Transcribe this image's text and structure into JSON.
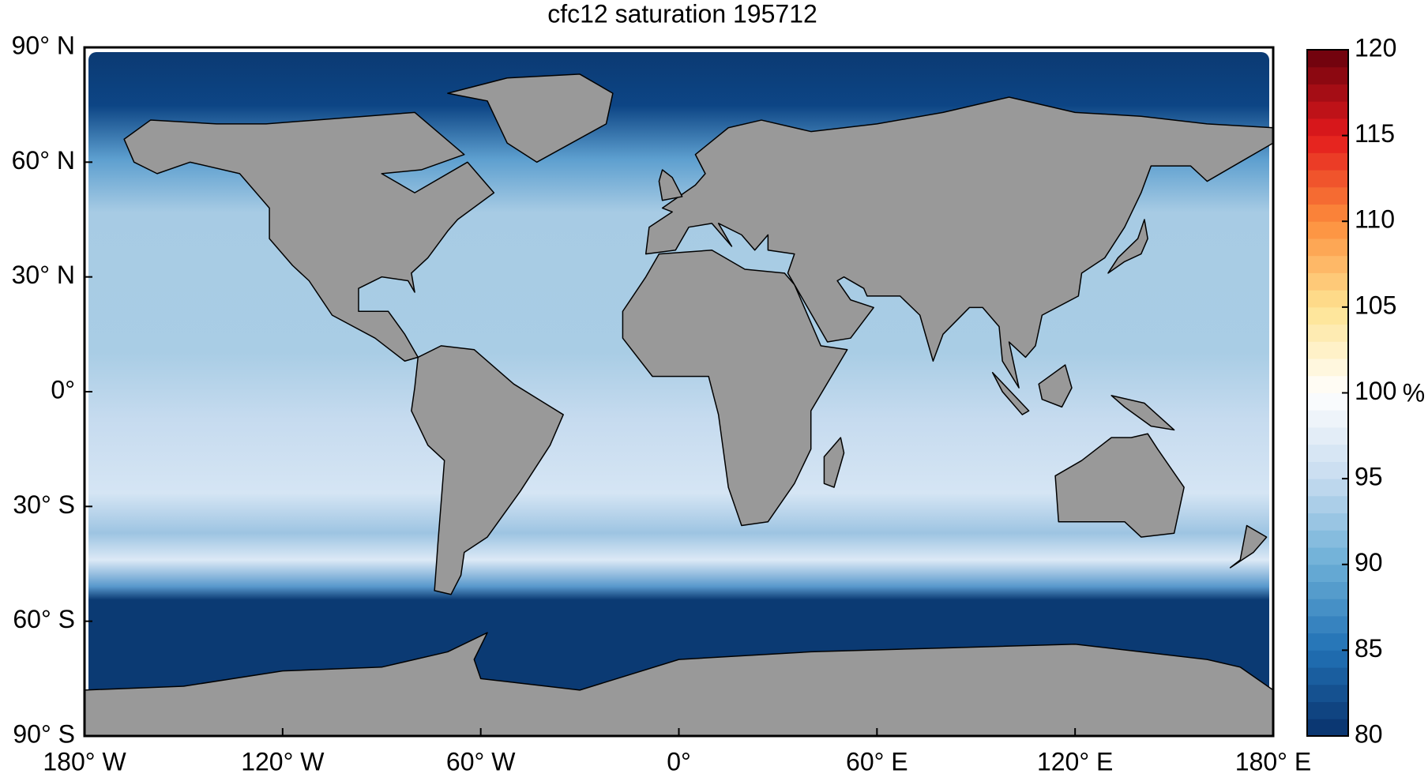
{
  "chart_data": {
    "type": "map",
    "title": "cfc12 saturation 195712",
    "xlim": [
      -180,
      180
    ],
    "xticks": [
      {
        "value": -180,
        "label": "180° W"
      },
      {
        "value": -120,
        "label": "120° W"
      },
      {
        "value": -60,
        "label": "60° W"
      },
      {
        "value": 0,
        "label": "0°"
      },
      {
        "value": 60,
        "label": "60° E"
      },
      {
        "value": 120,
        "label": "120° E"
      },
      {
        "value": 180,
        "label": "180° E"
      }
    ],
    "ylim": [
      -90,
      90
    ],
    "yticks": [
      {
        "value": 90,
        "label": "90° N"
      },
      {
        "value": 60,
        "label": "60° N"
      },
      {
        "value": 30,
        "label": "30° N"
      },
      {
        "value": 0,
        "label": "0°"
      },
      {
        "value": -30,
        "label": "30° S"
      },
      {
        "value": -60,
        "label": "60° S"
      },
      {
        "value": -90,
        "label": "90° S"
      }
    ],
    "colorbar": {
      "clim": [
        80,
        120
      ],
      "cticks": [
        80,
        85,
        90,
        95,
        100,
        105,
        110,
        115,
        120
      ],
      "label": "%",
      "colormap": [
        "#08306b",
        "#2171b5",
        "#6baed6",
        "#c6dbef",
        "#ffffff",
        "#fee391",
        "#fd8d3c",
        "#e31a1c",
        "#67000d"
      ],
      "steps": 40
    }
  }
}
